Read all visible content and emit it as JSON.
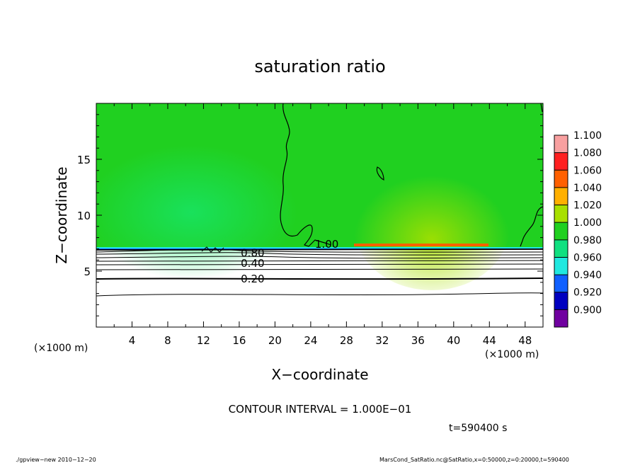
{
  "chart_data": {
    "type": "heatmap",
    "title": "saturation ratio",
    "xlabel": "X−coordinate",
    "ylabel": "Z−coordinate",
    "x_unit_left": "(×1000 m)",
    "x_unit_right": "(×1000 m)",
    "xlim": [
      0,
      50
    ],
    "ylim": [
      0,
      20
    ],
    "x_ticks": [
      4,
      8,
      12,
      16,
      20,
      24,
      28,
      32,
      36,
      40,
      44,
      48
    ],
    "y_ticks": [
      5,
      10,
      15
    ],
    "grid": false,
    "colorbar": {
      "labels": [
        "1.100",
        "1.080",
        "1.060",
        "1.040",
        "1.020",
        "1.000",
        "0.980",
        "0.960",
        "0.940",
        "0.920",
        "0.900"
      ],
      "levels": [
        1.1,
        1.08,
        1.06,
        1.04,
        1.02,
        1.0,
        0.98,
        0.96,
        0.94,
        0.92,
        0.9
      ],
      "colors": [
        "#f8a0a0",
        "#ff2020",
        "#ff6000",
        "#ffb000",
        "#a8e000",
        "#20d020",
        "#10e080",
        "#20e8e0",
        "#1060ff",
        "#0000c0",
        "#7000a0"
      ]
    },
    "contour_labels": [
      {
        "text": "1.00",
        "x": 25.8,
        "y": 7.4
      },
      {
        "text": "0.80",
        "x": 17.5,
        "y": 6.6
      },
      {
        "text": "0.40",
        "x": 17.5,
        "y": 5.7
      },
      {
        "text": "0.20",
        "x": 17.5,
        "y": 4.3
      }
    ],
    "contour_interval_text": "CONTOUR INTERVAL = 1.000E−01",
    "time_text": "t=590400 s"
  },
  "footer": {
    "left": "./gpview−new   2010−12−20",
    "right": "MarsCond_SatRatio.nc@SatRatio,x=0:50000,z=0:20000,t=590400"
  }
}
